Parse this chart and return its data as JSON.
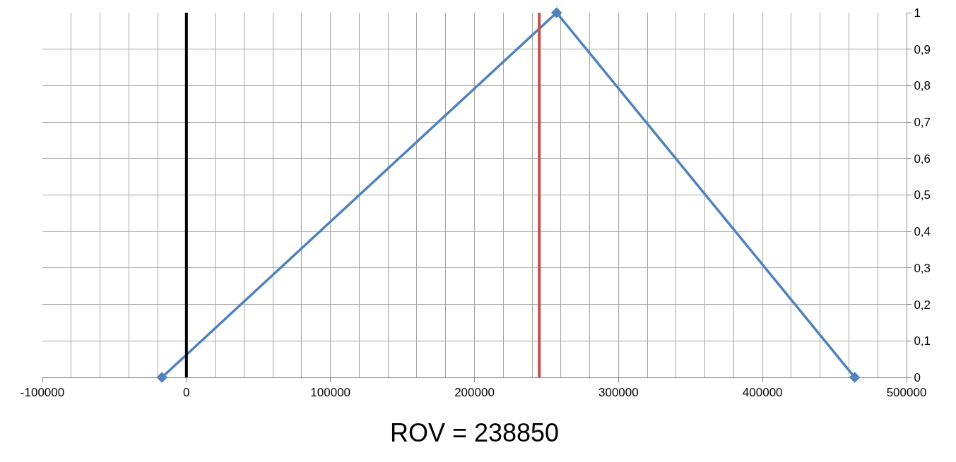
{
  "chart_data": {
    "type": "line",
    "xlabel": "ROV = 238850",
    "x": [
      -17000,
      257000,
      464000
    ],
    "series": [
      {
        "color": "#4f81bd",
        "values": [
          0,
          1,
          0
        ]
      }
    ],
    "xlim": [
      -100000,
      500000
    ],
    "xticks": [
      -100000,
      0,
      100000,
      200000,
      300000,
      400000,
      500000
    ],
    "ylim": [
      0,
      1
    ],
    "yticks": [
      0,
      {
        "value": 0.1,
        "label": "0,1"
      },
      {
        "value": 0.2,
        "label": "0,2"
      },
      {
        "value": 0.3,
        "label": "0,3"
      },
      {
        "value": 0.4,
        "label": "0,4"
      },
      {
        "value": 0.5,
        "label": "0,5"
      },
      {
        "value": 0.6,
        "label": "0,6"
      },
      {
        "value": 0.7,
        "label": "0,7"
      },
      {
        "value": 0.8,
        "label": "0,8"
      },
      {
        "value": 0.9,
        "label": "0,9"
      },
      1
    ],
    "ref_lines": [
      {
        "axis": "x",
        "value": 0,
        "color": "#000000"
      },
      {
        "axis": "x",
        "value": 245000,
        "color": "#c0504d"
      }
    ],
    "grid": true,
    "marker": "diamond",
    "line_style": "solid",
    "legend": false
  }
}
